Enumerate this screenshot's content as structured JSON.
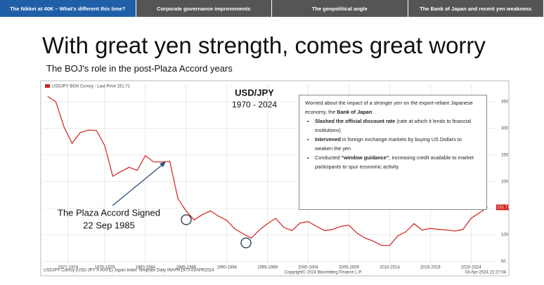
{
  "tabs": [
    "The Nikkei at 40K – What's different this time?",
    "Corporate governance improvements",
    "The geopolitical angle",
    "The Bank of Japan and recent yen weakness"
  ],
  "slide": {
    "title": "With great yen strength, comes great worry",
    "subtitle": "The BOJ's role in the post-Plaza Accord years"
  },
  "textbox": {
    "intro": [
      "Worried about the impact of a stronger yen on the export-reliant Japanese economy, the ",
      "Bank of Japan",
      ":"
    ],
    "bullets": [
      [
        "Slashed the official discount rate",
        " (rate at which it lends to financial institutions)"
      ],
      [
        "Intervened",
        " in foreign exchange markets by buying US Dollars to weaken the yen"
      ],
      [
        "Conducted ",
        "“window guidance”",
        ", increasing credit available to market participants to spur economic activity"
      ]
    ]
  },
  "chart_data": {
    "type": "line",
    "title": "USD/JPY",
    "subtitle": "1970 - 2024",
    "legend_text": "USDJPY BGN Curncy - Last Price 151.71",
    "last_price_label": "151.71",
    "annotation": [
      "The Plaza Accord Signed",
      "22 Sep 1985"
    ],
    "footer": [
      "USDJPY Curncy (USD-JPY X-RATE) Japan Index Template Daily 06APR1970-03APR2024",
      "Copyright© 2024 Bloomberg Finance L.P.",
      "03-Apr-2024 22:27:04"
    ],
    "x": [
      1970,
      1971,
      1972,
      1973,
      1974,
      1975,
      1976,
      1977,
      1978,
      1979,
      1980,
      1981,
      1982,
      1983,
      1984,
      1985,
      1986,
      1987,
      1988,
      1989,
      1990,
      1991,
      1992,
      1993,
      1994,
      1995,
      1996,
      1997,
      1998,
      1999,
      2000,
      2001,
      2002,
      2003,
      2004,
      2005,
      2006,
      2007,
      2008,
      2009,
      2010,
      2011,
      2012,
      2013,
      2014,
      2015,
      2016,
      2017,
      2018,
      2019,
      2020,
      2021,
      2022,
      2023,
      2024
    ],
    "series": [
      {
        "name": "USDJPY",
        "color": "#d11f1f",
        "values": [
          360,
          350,
          303,
          272,
          292,
          297,
          296,
          268,
          210,
          219,
          227,
          221,
          249,
          237,
          237,
          238,
          168,
          145,
          128,
          138,
          145,
          135,
          127,
          111,
          102,
          94,
          109,
          121,
          131,
          114,
          108,
          122,
          125,
          116,
          108,
          110,
          116,
          118,
          103,
          94,
          88,
          80,
          80,
          98,
          106,
          121,
          109,
          112,
          110,
          109,
          107,
          110,
          131,
          141,
          151.71
        ]
      }
    ],
    "xlim": [
      1969.5,
      2025
    ],
    "xticks": [
      {
        "value": 1972.5,
        "label": "1971-1974"
      },
      {
        "value": 1977,
        "label": "1975-1979"
      },
      {
        "value": 1982,
        "label": "1980-1984"
      },
      {
        "value": 1987,
        "label": "1985-1989"
      },
      {
        "value": 1992,
        "label": "1990-1994"
      },
      {
        "value": 1997,
        "label": "1995-1999"
      },
      {
        "value": 2002,
        "label": "2000-2004"
      },
      {
        "value": 2007,
        "label": "2005-2009"
      },
      {
        "value": 2012,
        "label": "2010-2014"
      },
      {
        "value": 2017,
        "label": "2015-2019"
      },
      {
        "value": 2022,
        "label": "2020-2024"
      }
    ],
    "ylim": [
      40,
      383
    ],
    "yticks": [
      50,
      100,
      150,
      200,
      250,
      300,
      350
    ],
    "grid": true
  }
}
